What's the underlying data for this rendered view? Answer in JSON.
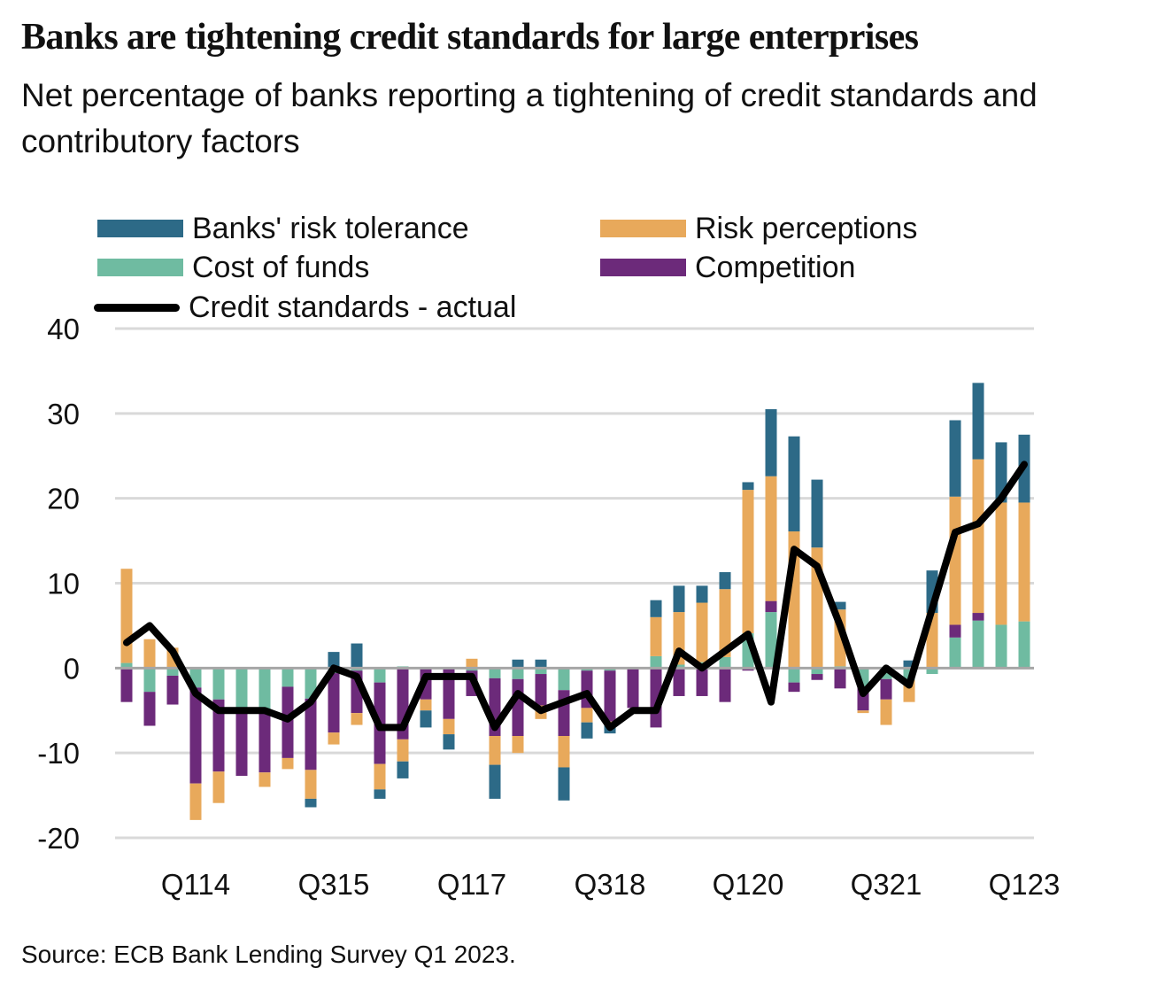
{
  "header": {
    "title": "Banks are tightening credit standards for large enterprises",
    "subtitle": "Net percentage of banks reporting a tightening of credit standards and contributory factors"
  },
  "legend": [
    {
      "label": "Banks' risk tolerance",
      "color": "#2d6a87",
      "kind": "box"
    },
    {
      "label": "Risk perceptions",
      "color": "#e8a95b",
      "kind": "box"
    },
    {
      "label": "Cost of funds",
      "color": "#6fbba1",
      "kind": "box"
    },
    {
      "label": "Competition",
      "color": "#6c2a7a",
      "kind": "box"
    },
    {
      "label": "Credit standards - actual",
      "color": "#000000",
      "kind": "line"
    }
  ],
  "source": "Source: ECB Bank Lending Survey Q1 2023.",
  "chart_data": {
    "type": "bar",
    "subtype": "stacked bar with line overlay",
    "title": "Banks are tightening credit standards for large enterprises",
    "subtitle": "Net percentage of banks reporting a tightening of credit standards and contributory factors",
    "xlabel": "",
    "ylabel": "",
    "ylim": [
      -20,
      40
    ],
    "yticks": [
      40,
      30,
      20,
      10,
      0,
      -10,
      -20
    ],
    "grid": true,
    "legend_position": "top",
    "categories": [
      "Q213",
      "Q313",
      "Q413",
      "Q114",
      "Q214",
      "Q314",
      "Q414",
      "Q115",
      "Q215",
      "Q315",
      "Q415",
      "Q116",
      "Q216",
      "Q316",
      "Q416",
      "Q117",
      "Q217",
      "Q317",
      "Q417",
      "Q118",
      "Q218",
      "Q318",
      "Q418",
      "Q119",
      "Q219",
      "Q319",
      "Q419",
      "Q120",
      "Q220",
      "Q320",
      "Q420",
      "Q121",
      "Q221",
      "Q321",
      "Q421",
      "Q122",
      "Q222",
      "Q322",
      "Q422",
      "Q123"
    ],
    "xtick_labels": [
      {
        "category": "Q114",
        "label": "Q114"
      },
      {
        "category": "Q315",
        "label": "Q315"
      },
      {
        "category": "Q117",
        "label": "Q117"
      },
      {
        "category": "Q318",
        "label": "Q318"
      },
      {
        "category": "Q120",
        "label": "Q120"
      },
      {
        "category": "Q321",
        "label": "Q321"
      },
      {
        "category": "Q123",
        "label": "Q123"
      }
    ],
    "series": [
      {
        "name": "Cost of funds",
        "color": "#6fbba1",
        "type": "bar",
        "values": [
          0.6,
          -2.8,
          -0.9,
          -2.3,
          -3.7,
          -4.7,
          -5.0,
          -2.2,
          -3.6,
          -0.6,
          -0.3,
          -1.7,
          0.2,
          0,
          0,
          -0.3,
          -1.2,
          -1.3,
          -0.7,
          -2.6,
          -0.3,
          -0.3,
          0,
          1.4,
          0.4,
          0.7,
          1.3,
          4.1,
          6.6,
          -1.7,
          -0.7,
          0.2,
          -2.2,
          -1.3,
          -1.4,
          -0.7,
          3.6,
          5.6,
          5.1,
          5.5
        ]
      },
      {
        "name": "Competition",
        "color": "#6c2a7a",
        "type": "bar",
        "values": [
          -4.0,
          -4.0,
          -3.4,
          -11.3,
          -8.5,
          -8.0,
          -7.3,
          -8.4,
          -8.4,
          -7.0,
          -5.0,
          -9.6,
          -8.4,
          -3.7,
          -6.0,
          -3.0,
          -6.8,
          -6.7,
          -3.7,
          -5.4,
          -4.4,
          -6.0,
          -4.7,
          -7.0,
          -3.3,
          -3.3,
          -4.0,
          -0.3,
          1.3,
          -1.1,
          -0.7,
          -2.4,
          -2.8,
          -2.4,
          0,
          0,
          1.5,
          0.9,
          0,
          0
        ]
      },
      {
        "name": "Risk perceptions",
        "color": "#e8a95b",
        "type": "bar",
        "values": [
          11.1,
          3.4,
          2.4,
          -4.3,
          -3.7,
          0,
          -1.7,
          -1.3,
          -3.4,
          -1.4,
          -1.4,
          -3.0,
          -2.6,
          -1.3,
          -1.8,
          1.1,
          -3.4,
          -2.0,
          -1.6,
          -3.7,
          -1.7,
          -0.3,
          0,
          4.6,
          6.2,
          7.0,
          8.0,
          16.9,
          14.7,
          16.1,
          14.2,
          6.7,
          -0.3,
          -3.0,
          -2.6,
          6.5,
          15.1,
          18.1,
          14.4,
          14.0
        ]
      },
      {
        "name": "Banks' risk tolerance",
        "color": "#2d6a87",
        "type": "bar",
        "values": [
          0,
          0,
          0,
          0,
          0,
          0,
          0,
          0,
          -1.0,
          1.9,
          2.9,
          -1.1,
          -2.0,
          -2.0,
          -1.8,
          0,
          -4.0,
          1.0,
          1.0,
          -3.9,
          -1.9,
          -1.1,
          0,
          2.0,
          3.1,
          2.0,
          2.0,
          0.9,
          7.9,
          11.2,
          8.0,
          0.9,
          0,
          0,
          0.9,
          5.0,
          9.0,
          9.0,
          7.1,
          8.0
        ]
      },
      {
        "name": "Credit standards - actual",
        "color": "#000000",
        "type": "line",
        "values": [
          3,
          5,
          2,
          -3,
          -5,
          -5,
          -5,
          -6,
          -4,
          0,
          -1,
          -7,
          -7,
          -1,
          -1,
          -1,
          -7,
          -3,
          -5,
          -4,
          -3,
          -7,
          -5,
          -5,
          2,
          0,
          2,
          4,
          -4,
          14,
          12,
          5,
          -3,
          0,
          -2,
          7,
          16,
          17,
          20,
          24
        ]
      }
    ]
  }
}
